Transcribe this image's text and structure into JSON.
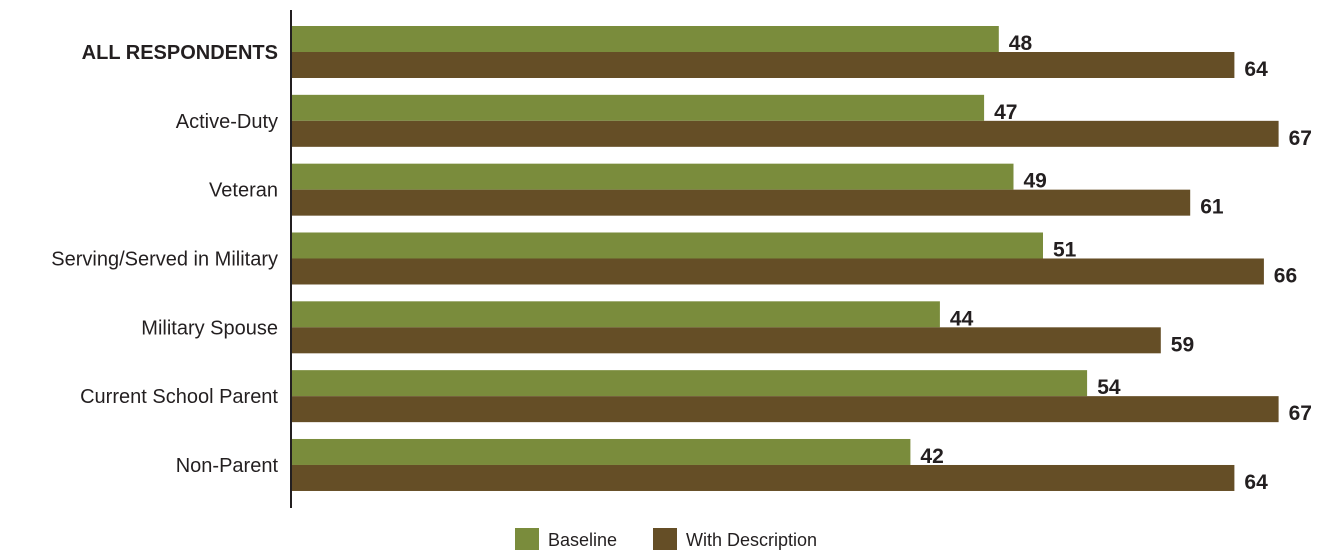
{
  "chart_data": {
    "type": "bar",
    "orientation": "horizontal",
    "categories": [
      "ALL RESPONDENTS",
      "Active-Duty",
      "Veteran",
      "Serving/Served in Military",
      "Military Spouse",
      "Current School Parent",
      "Non-Parent"
    ],
    "emphasized_category": "ALL RESPONDENTS",
    "series": [
      {
        "name": "Baseline",
        "color": "#7a8c3c",
        "values": [
          48,
          47,
          49,
          51,
          44,
          54,
          42
        ]
      },
      {
        "name": "With Description",
        "color": "#654e26",
        "values": [
          64,
          67,
          61,
          66,
          59,
          67,
          64
        ]
      }
    ],
    "data_labels": true,
    "legend_position": "bottom",
    "grid": false,
    "axis_line_color": "#231f20",
    "xlim": [
      0,
      67
    ]
  }
}
